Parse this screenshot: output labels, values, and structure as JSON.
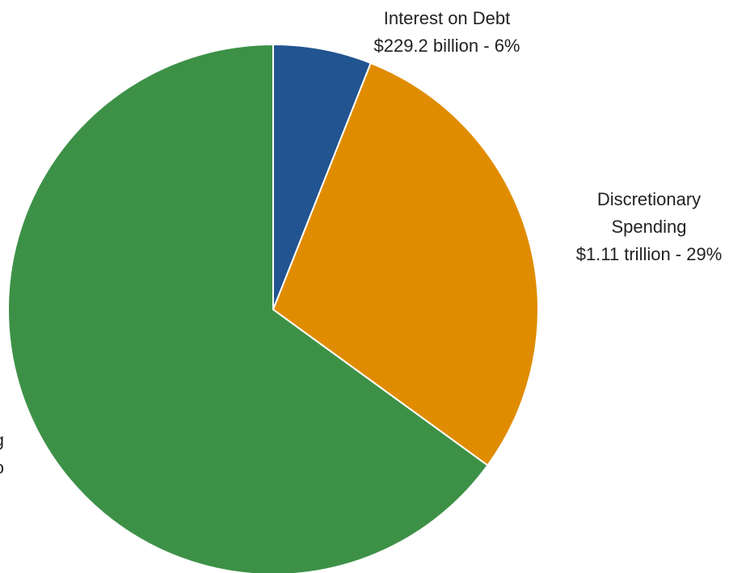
{
  "chart_data": {
    "type": "pie",
    "slices": [
      {
        "name": "Interest on Debt",
        "value_text": "$229.2 billion - 6%",
        "percent": 6,
        "color": "#215490",
        "label_lines": [
          "Interest on Debt",
          "$229.2 billion - 6%"
        ]
      },
      {
        "name": "Discretionary Spending",
        "value_text": "$1.11 trillion - 29%",
        "percent": 29,
        "color": "#E08C00",
        "label_lines": [
          "Discretionary",
          "Spending",
          "$1.11 trillion - 29%"
        ]
      },
      {
        "name": "Mandatory Spending",
        "value_text": "",
        "percent": 65,
        "color": "#3D9147",
        "label_lines": [
          "g",
          "o"
        ]
      }
    ],
    "start_angle": "12 o'clock",
    "direction": "clockwise"
  }
}
